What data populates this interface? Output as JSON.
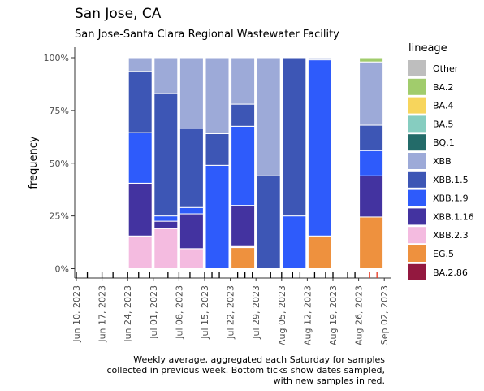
{
  "title": "San Jose, CA",
  "subtitle": "San Jose-Santa Clara Regional Wastewater Facility",
  "caption": [
    "Weekly average, aggregated each Saturday for samples",
    "collected in previous week. Bottom ticks show dates sampled,",
    "with new samples in red."
  ],
  "chart_data": {
    "type": "bar",
    "stacked": true,
    "ylabel": "frequency",
    "y_ticks": [
      "0%",
      "25%",
      "50%",
      "75%",
      "100%"
    ],
    "ylim": [
      0,
      1
    ],
    "x_ticks": [
      "Jun 10, 2023",
      "Jun 17, 2023",
      "Jun 24, 2023",
      "Jul 01, 2023",
      "Jul 08, 2023",
      "Jul 15, 2023",
      "Jul 22, 2023",
      "Jul 29, 2023",
      "Aug 05, 2023",
      "Aug 12, 2023",
      "Aug 19, 2023",
      "Aug 26, 2023",
      "Sep 02, 2023"
    ],
    "xlim": [
      "2023-06-08",
      "2023-09-02"
    ],
    "legend_title": "lineage",
    "legend_position": "right",
    "series": [
      {
        "name": "Other",
        "color": "#bebebe"
      },
      {
        "name": "BA.2",
        "color": "#a1cc6c"
      },
      {
        "name": "BA.4",
        "color": "#f7d55c"
      },
      {
        "name": "BA.5",
        "color": "#86cdc0"
      },
      {
        "name": "BQ.1",
        "color": "#236b69"
      },
      {
        "name": "XBB",
        "color": "#9daad8"
      },
      {
        "name": "XBB.1.5",
        "color": "#3d56b5"
      },
      {
        "name": "XBB.1.9",
        "color": "#2e5bfb"
      },
      {
        "name": "XBB.1.16",
        "color": "#4333a0"
      },
      {
        "name": "XBB.2.3",
        "color": "#f4bbe0"
      },
      {
        "name": "EG.5",
        "color": "#ee913e"
      },
      {
        "name": "BA.2.86",
        "color": "#93183f"
      }
    ],
    "weeks": [
      {
        "date": "2023-06-24",
        "values": {
          "XBB.2.3": 0.155,
          "XBB.1.16": 0.25,
          "XBB.1.9": 0.24,
          "XBB.1.5": 0.29,
          "XBB": 0.065
        }
      },
      {
        "date": "2023-07-01",
        "values": {
          "XBB.2.3": 0.19,
          "XBB.1.16": 0.035,
          "XBB.1.9": 0.025,
          "XBB.1.5": 0.58,
          "XBB": 0.17
        }
      },
      {
        "date": "2023-07-08",
        "values": {
          "XBB.2.3": 0.095,
          "XBB.1.16": 0.165,
          "XBB.1.9": 0.03,
          "XBB.1.5": 0.375,
          "XBB": 0.335
        }
      },
      {
        "date": "2023-07-15",
        "values": {
          "XBB.1.9": 0.49,
          "XBB.1.5": 0.15,
          "XBB": 0.36
        }
      },
      {
        "date": "2023-07-22",
        "values": {
          "EG.5": 0.1,
          "XBB.2.3": 0.005,
          "XBB.1.16": 0.195,
          "XBB.1.9": 0.375,
          "XBB.1.5": 0.105,
          "XBB": 0.22
        }
      },
      {
        "date": "2023-07-29",
        "values": {
          "XBB.1.5": 0.44,
          "XBB": 0.56
        }
      },
      {
        "date": "2023-08-05",
        "values": {
          "XBB.1.9": 0.25,
          "XBB.1.5": 0.75
        }
      },
      {
        "date": "2023-08-12",
        "values": {
          "EG.5": 0.155,
          "XBB.1.9": 0.835,
          "XBB.1.5": 0.005,
          "XBB": 0.005
        }
      },
      {
        "date": "2023-08-26",
        "values": {
          "EG.5": 0.245,
          "XBB.1.16": 0.195,
          "XBB.1.9": 0.12,
          "XBB.1.5": 0.12,
          "XBB": 0.3,
          "BA.2": 0.02
        }
      }
    ],
    "sample_dates": [
      {
        "date": "2023-06-10",
        "new": false
      },
      {
        "date": "2023-06-13",
        "new": false
      },
      {
        "date": "2023-06-17",
        "new": false
      },
      {
        "date": "2023-06-20",
        "new": false
      },
      {
        "date": "2023-06-24",
        "new": false
      },
      {
        "date": "2023-06-27",
        "new": false
      },
      {
        "date": "2023-06-30",
        "new": false
      },
      {
        "date": "2023-07-05",
        "new": false
      },
      {
        "date": "2023-07-08",
        "new": false
      },
      {
        "date": "2023-07-11",
        "new": false
      },
      {
        "date": "2023-07-15",
        "new": false
      },
      {
        "date": "2023-07-17",
        "new": false
      },
      {
        "date": "2023-07-19",
        "new": false
      },
      {
        "date": "2023-07-24",
        "new": false
      },
      {
        "date": "2023-07-26",
        "new": false
      },
      {
        "date": "2023-07-28",
        "new": false
      },
      {
        "date": "2023-08-02",
        "new": false
      },
      {
        "date": "2023-08-05",
        "new": false
      },
      {
        "date": "2023-08-08",
        "new": false
      },
      {
        "date": "2023-08-10",
        "new": false
      },
      {
        "date": "2023-08-14",
        "new": false
      },
      {
        "date": "2023-08-17",
        "new": false
      },
      {
        "date": "2023-08-19",
        "new": false
      },
      {
        "date": "2023-08-23",
        "new": false
      },
      {
        "date": "2023-08-25",
        "new": false
      },
      {
        "date": "2023-08-29",
        "new": true
      },
      {
        "date": "2023-08-31",
        "new": true
      }
    ]
  }
}
